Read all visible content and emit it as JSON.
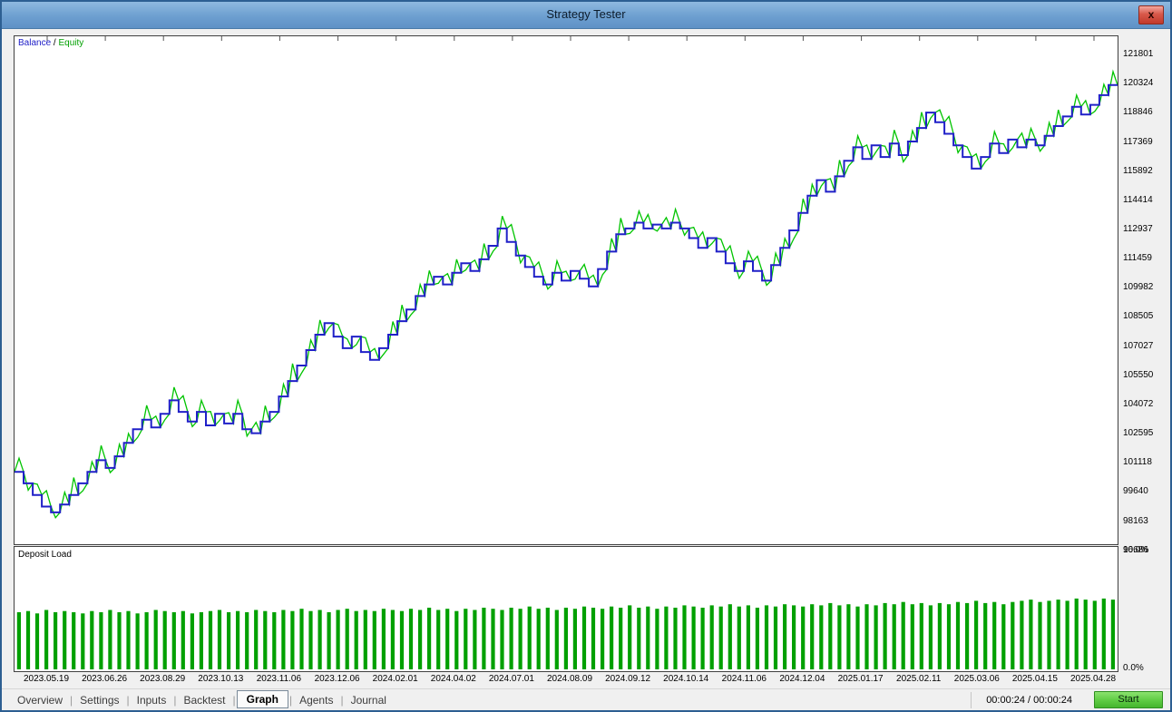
{
  "window": {
    "title": "Strategy Tester",
    "close_glyph": "x"
  },
  "legend": {
    "balance_label": "Balance",
    "separator": " / ",
    "equity_label": "Equity"
  },
  "colors": {
    "balance": "#2020c8",
    "equity": "#00c400",
    "equity_text": "#00a000",
    "deposit_bar": "#00a000",
    "tick": "#555555"
  },
  "y_axis": {
    "labels": [
      "121801",
      "120324",
      "118846",
      "117369",
      "115892",
      "114414",
      "112937",
      "111459",
      "109982",
      "108505",
      "107027",
      "105550",
      "104072",
      "102595",
      "101118",
      "99640",
      "98163",
      "96686"
    ]
  },
  "x_axis": {
    "labels": [
      "2023.05.19",
      "2023.06.26",
      "2023.08.29",
      "2023.10.13",
      "2023.11.06",
      "2023.12.06",
      "2024.02.01",
      "2024.04.02",
      "2024.07.01",
      "2024.08.09",
      "2024.09.12",
      "2024.10.14",
      "2024.11.06",
      "2024.12.04",
      "2025.01.17",
      "2025.02.11",
      "2025.03.06",
      "2025.04.15",
      "2025.04.28"
    ]
  },
  "deposit_panel": {
    "title": "Deposit Load",
    "max_label": "10.0%",
    "min_label": "0.0%"
  },
  "tabs": {
    "items": [
      "Overview",
      "Settings",
      "Inputs",
      "Backtest",
      "Graph",
      "Agents",
      "Journal"
    ],
    "active": "Graph"
  },
  "status": {
    "time": "00:00:24 / 00:00:24",
    "start_label": "Start"
  },
  "chart_data": {
    "type": "line",
    "title": "Balance / Equity backtest curve",
    "ylim": [
      96550,
      122850
    ],
    "y_ticks": [
      121801,
      120324,
      118846,
      117369,
      115892,
      114414,
      112937,
      111459,
      109982,
      108505,
      107027,
      105550,
      104072,
      102595,
      101118,
      99640,
      98163,
      96686
    ],
    "x_tick_labels": [
      "2023.05.19",
      "2023.06.26",
      "2023.08.29",
      "2023.10.13",
      "2023.11.06",
      "2023.12.06",
      "2024.02.01",
      "2024.04.02",
      "2024.07.01",
      "2024.08.09",
      "2024.09.12",
      "2024.10.14",
      "2024.11.06",
      "2024.12.04",
      "2025.01.17",
      "2025.02.11",
      "2025.03.06",
      "2025.04.15",
      "2025.04.28"
    ],
    "series": [
      {
        "name": "Balance",
        "color": "#2020c8",
        "values": [
          100300,
          99700,
          99100,
          98500,
          98200,
          98600,
          99100,
          99700,
          100300,
          100900,
          100500,
          101100,
          101800,
          102500,
          103000,
          102600,
          103300,
          104000,
          103400,
          102900,
          103400,
          102700,
          103300,
          102800,
          103300,
          102500,
          102300,
          102900,
          103400,
          104200,
          105000,
          105800,
          106600,
          107400,
          108000,
          107300,
          106700,
          107300,
          106500,
          106100,
          106700,
          107400,
          108100,
          108700,
          109400,
          110000,
          110400,
          110000,
          110600,
          111100,
          110700,
          111300,
          112000,
          112900,
          112200,
          111500,
          110900,
          110400,
          110000,
          110600,
          110200,
          110700,
          110300,
          109900,
          110800,
          111700,
          112600,
          112900,
          113200,
          112900,
          113100,
          112900,
          113200,
          112900,
          112400,
          111900,
          112400,
          111700,
          111100,
          110700,
          111200,
          110700,
          110200,
          111000,
          111900,
          112800,
          113700,
          114600,
          115400,
          114800,
          115600,
          116400,
          117100,
          116500,
          117200,
          116600,
          117300,
          116700,
          117400,
          118100,
          118900,
          118400,
          117800,
          117200,
          116600,
          116000,
          116600,
          117300,
          116800,
          117500,
          117100,
          117500,
          117200,
          117700,
          118200,
          118700,
          119200,
          118800,
          119300,
          119800,
          120324
        ]
      },
      {
        "name": "Equity",
        "color": "#00c400",
        "spike_pattern": [
          700,
          -350,
          560,
          820,
          -280,
          640,
          900,
          -380,
          520,
          760,
          -240,
          620,
          480,
          -420,
          740,
          580,
          -300,
          680,
          840,
          -260,
          600,
          720,
          -340,
          560
        ]
      }
    ],
    "deposit_load": {
      "type": "bar",
      "unit": "%",
      "ylim": [
        0,
        10
      ],
      "values": [
        5.0,
        5.1,
        4.9,
        5.2,
        5.0,
        5.1,
        5.0,
        4.9,
        5.1,
        5.0,
        5.2,
        5.0,
        5.1,
        4.9,
        5.0,
        5.2,
        5.1,
        5.0,
        5.1,
        4.9,
        5.0,
        5.1,
        5.2,
        5.0,
        5.1,
        5.0,
        5.2,
        5.1,
        5.0,
        5.2,
        5.1,
        5.3,
        5.1,
        5.2,
        5.0,
        5.2,
        5.3,
        5.1,
        5.2,
        5.1,
        5.3,
        5.2,
        5.1,
        5.3,
        5.2,
        5.4,
        5.2,
        5.3,
        5.1,
        5.3,
        5.2,
        5.4,
        5.3,
        5.2,
        5.4,
        5.3,
        5.5,
        5.3,
        5.4,
        5.2,
        5.4,
        5.3,
        5.5,
        5.4,
        5.3,
        5.5,
        5.4,
        5.6,
        5.4,
        5.5,
        5.3,
        5.5,
        5.4,
        5.6,
        5.5,
        5.4,
        5.6,
        5.5,
        5.7,
        5.5,
        5.6,
        5.4,
        5.6,
        5.5,
        5.7,
        5.6,
        5.5,
        5.7,
        5.6,
        5.8,
        5.6,
        5.7,
        5.5,
        5.7,
        5.6,
        5.8,
        5.7,
        5.9,
        5.7,
        5.8,
        5.6,
        5.8,
        5.7,
        5.9,
        5.8,
        6.0,
        5.8,
        5.9,
        5.7,
        5.9,
        6.0,
        6.1,
        5.9,
        6.0,
        6.1,
        6.0,
        6.2,
        6.1,
        6.0,
        6.2,
        6.1
      ]
    }
  }
}
